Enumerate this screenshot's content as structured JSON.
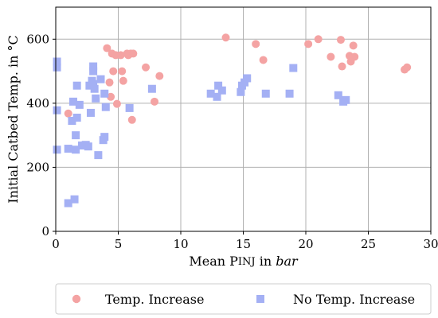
{
  "chart_data": {
    "type": "scatter",
    "title": "",
    "xlabel": "Mean P_INJ in bar",
    "xlabel_plain": "Mean P",
    "xlabel_sub": "INJ",
    "xlabel_mid": " in ",
    "xlabel_italic": "bar",
    "ylabel": "Initial Catbed Temp. in °C",
    "xlim": [
      0,
      30
    ],
    "ylim": [
      0,
      700
    ],
    "xticks": [
      0,
      5,
      10,
      15,
      20,
      25,
      30
    ],
    "yticks": [
      0,
      200,
      400,
      600
    ],
    "grid": true,
    "legend_position": "bottom-outside",
    "series": [
      {
        "name": "Temp. Increase",
        "marker": "circle",
        "color": "#f4a3a3",
        "points": [
          [
            1.0,
            368
          ],
          [
            4.1,
            572
          ],
          [
            4.3,
            465
          ],
          [
            4.4,
            420
          ],
          [
            4.5,
            555
          ],
          [
            4.6,
            500
          ],
          [
            4.8,
            550
          ],
          [
            4.9,
            398
          ],
          [
            5.2,
            550
          ],
          [
            5.3,
            500
          ],
          [
            5.4,
            470
          ],
          [
            5.7,
            555
          ],
          [
            5.8,
            550
          ],
          [
            6.0,
            555
          ],
          [
            6.1,
            348
          ],
          [
            6.2,
            555
          ],
          [
            7.2,
            512
          ],
          [
            7.9,
            405
          ],
          [
            8.3,
            485
          ],
          [
            13.6,
            605
          ],
          [
            16.0,
            585
          ],
          [
            16.6,
            535
          ],
          [
            20.2,
            585
          ],
          [
            21.0,
            600
          ],
          [
            22.0,
            545
          ],
          [
            22.8,
            598
          ],
          [
            22.9,
            515
          ],
          [
            23.5,
            548
          ],
          [
            23.6,
            530
          ],
          [
            23.8,
            580
          ],
          [
            23.9,
            545
          ],
          [
            27.9,
            505
          ],
          [
            28.1,
            512
          ]
        ]
      },
      {
        "name": "No Temp. Increase",
        "marker": "square",
        "color": "#a4b0f4",
        "points": [
          [
            0.1,
            530
          ],
          [
            0.1,
            512
          ],
          [
            0.1,
            378
          ],
          [
            0.1,
            255
          ],
          [
            1.0,
            88
          ],
          [
            1.0,
            258
          ],
          [
            1.3,
            345
          ],
          [
            1.4,
            405
          ],
          [
            1.5,
            100
          ],
          [
            1.6,
            300
          ],
          [
            1.6,
            255
          ],
          [
            1.7,
            455
          ],
          [
            1.7,
            355
          ],
          [
            1.9,
            395
          ],
          [
            2.1,
            268
          ],
          [
            2.4,
            270
          ],
          [
            2.6,
            265
          ],
          [
            2.7,
            455
          ],
          [
            2.8,
            370
          ],
          [
            2.9,
            470
          ],
          [
            3.0,
            515
          ],
          [
            3.0,
            500
          ],
          [
            3.0,
            460
          ],
          [
            3.1,
            445
          ],
          [
            3.2,
            415
          ],
          [
            3.4,
            238
          ],
          [
            3.6,
            475
          ],
          [
            3.8,
            285
          ],
          [
            3.9,
            295
          ],
          [
            3.9,
            430
          ],
          [
            4.0,
            388
          ],
          [
            5.9,
            385
          ],
          [
            7.7,
            445
          ],
          [
            12.4,
            430
          ],
          [
            12.9,
            420
          ],
          [
            13.0,
            455
          ],
          [
            13.3,
            440
          ],
          [
            14.8,
            435
          ],
          [
            14.9,
            455
          ],
          [
            15.1,
            465
          ],
          [
            15.3,
            478
          ],
          [
            16.8,
            430
          ],
          [
            18.7,
            430
          ],
          [
            19.0,
            510
          ],
          [
            22.6,
            425
          ],
          [
            23.0,
            405
          ],
          [
            23.2,
            410
          ]
        ]
      }
    ]
  }
}
